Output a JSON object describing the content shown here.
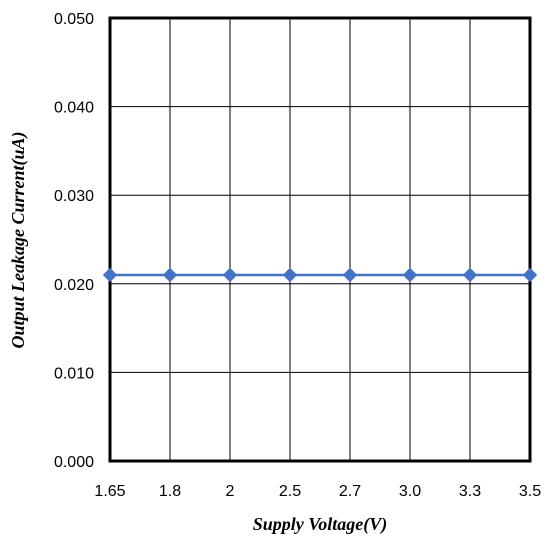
{
  "chart_data": {
    "type": "line",
    "categories": [
      "1.65",
      "1.8",
      "2",
      "2.5",
      "2.7",
      "3.0",
      "3.3",
      "3.5"
    ],
    "series": [
      {
        "values": [
          0.021,
          0.021,
          0.021,
          0.021,
          0.021,
          0.021,
          0.021,
          0.021
        ],
        "color": "#4472C4",
        "marker": "diamond"
      }
    ],
    "xlabel": "Supply Voltage(V)",
    "ylabel": "Output Leakage Current(uA)",
    "ylim": [
      0,
      0.05
    ],
    "yticks": [
      "0.000",
      "0.010",
      "0.020",
      "0.030",
      "0.040",
      "0.050"
    ],
    "grid": true
  }
}
